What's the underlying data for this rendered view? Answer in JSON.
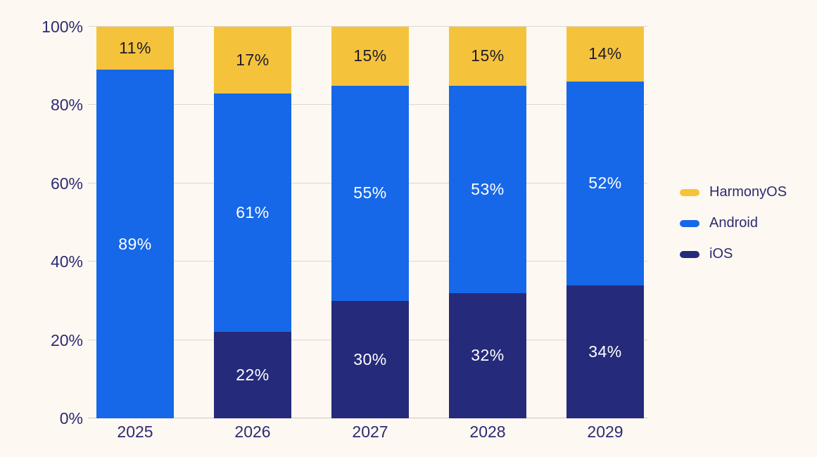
{
  "page": {
    "background_color": "#FDF9F2"
  },
  "chart_data": {
    "type": "bar",
    "variant": "stacked-100-percent",
    "title": "",
    "xlabel": "",
    "ylabel": "",
    "categories": [
      "2025",
      "2026",
      "2027",
      "2028",
      "2029"
    ],
    "series": [
      {
        "name": "iOS",
        "color": "#262A7B",
        "label_color": "#FFFFFF",
        "values": [
          0,
          22,
          30,
          32,
          34
        ]
      },
      {
        "name": "Android",
        "color": "#1768E8",
        "label_color": "#FFFFFF",
        "values": [
          89,
          61,
          55,
          53,
          52
        ]
      },
      {
        "name": "HarmonyOS",
        "color": "#F5C33B",
        "label_color": "#1D1C30",
        "values": [
          11,
          17,
          15,
          15,
          14
        ]
      }
    ],
    "value_suffix": "%",
    "y_ticks": [
      "0%",
      "20%",
      "40%",
      "60%",
      "80%",
      "100%"
    ],
    "ylim": [
      0,
      100
    ],
    "grid": true,
    "gridline_color": "#DBD7D1",
    "axis_text_color": "#2E2A72",
    "legend_position": "right",
    "legend_order": [
      "HarmonyOS",
      "Android",
      "iOS"
    ]
  }
}
